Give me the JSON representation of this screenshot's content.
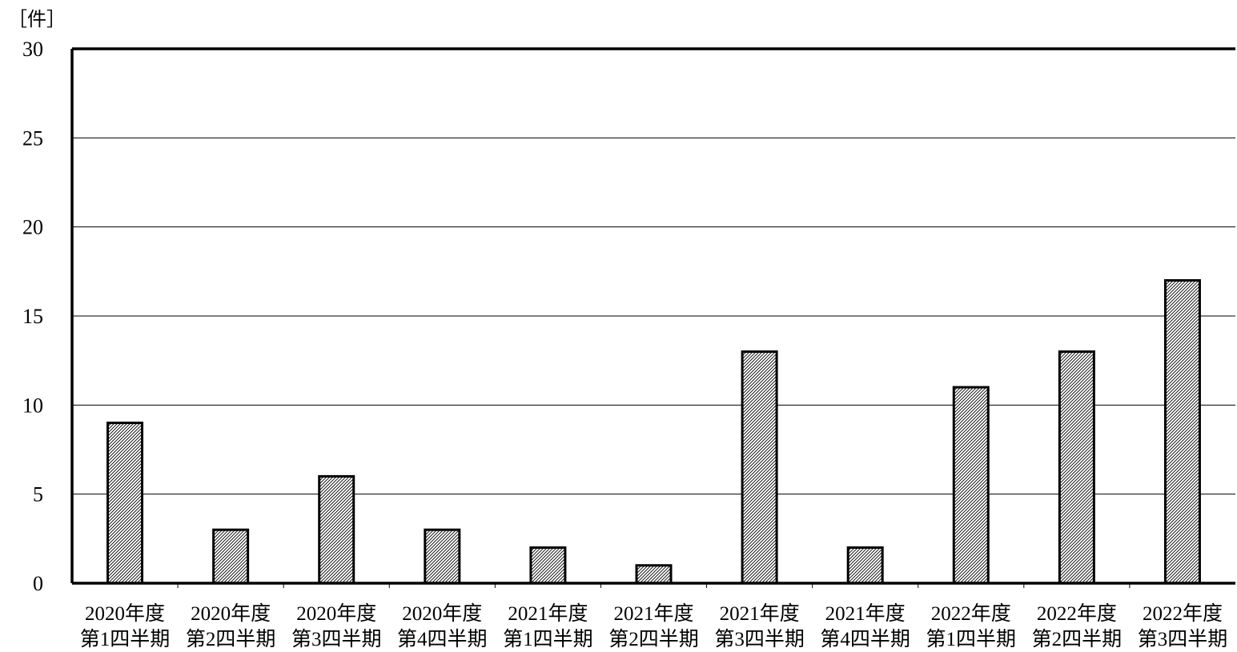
{
  "chart_data": {
    "type": "bar",
    "unit_label": "［件］",
    "categories": [
      [
        "2020年度",
        "第1四半期"
      ],
      [
        "2020年度",
        "第2四半期"
      ],
      [
        "2020年度",
        "第3四半期"
      ],
      [
        "2020年度",
        "第4四半期"
      ],
      [
        "2021年度",
        "第1四半期"
      ],
      [
        "2021年度",
        "第2四半期"
      ],
      [
        "2021年度",
        "第3四半期"
      ],
      [
        "2021年度",
        "第4四半期"
      ],
      [
        "2022年度",
        "第1四半期"
      ],
      [
        "2022年度",
        "第2四半期"
      ],
      [
        "2022年度",
        "第3四半期"
      ]
    ],
    "values": [
      9,
      3,
      6,
      3,
      2,
      1,
      13,
      2,
      11,
      13,
      17
    ],
    "ylim": [
      0,
      30
    ],
    "yticks": [
      0,
      5,
      10,
      15,
      20,
      25,
      30
    ],
    "grid": true,
    "bar_fill": "hatched",
    "colors": {
      "bar_stroke": "#000000",
      "hatch": "#000000",
      "grid": "#000000"
    }
  }
}
